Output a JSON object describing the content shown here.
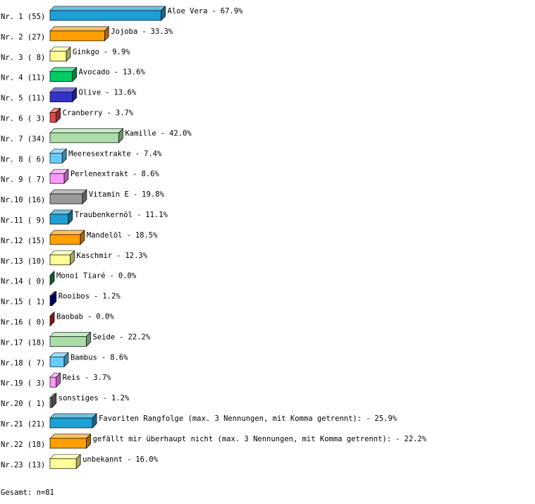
{
  "chart_data": {
    "type": "bar",
    "row_labels": [
      "Nr. 1 (55)",
      "Nr. 2 (27)",
      "Nr. 3 ( 8)",
      "Nr. 4 (11)",
      "Nr. 5 (11)",
      "Nr. 6 ( 3)",
      "Nr. 7 (34)",
      "Nr. 8 ( 6)",
      "Nr. 9 ( 7)",
      "Nr.10 (16)",
      "Nr.11 ( 9)",
      "Nr.12 (15)",
      "Nr.13 (10)",
      "Nr.14 ( 0)",
      "Nr.15 ( 1)",
      "Nr.16 ( 0)",
      "Nr.17 (18)",
      "Nr.18 ( 7)",
      "Nr.19 ( 3)",
      "Nr.20 ( 1)",
      "Nr.21 (21)",
      "Nr.22 (18)",
      "Nr.23 (13)"
    ],
    "categories": [
      "Aloe Vera",
      "Jojoba",
      "Ginkgo",
      "Avocado",
      "Olive",
      "Cranberry",
      "Kamille",
      "Meeresextrakte",
      "Perlenextrakt",
      "Vitamin E",
      "Traubenkernöl",
      "Mandelöl",
      "Kaschmir",
      "Monoi Tiaré",
      "Rooibos",
      "Baobab",
      "Seide",
      "Bambus",
      "Reis",
      "sonstiges",
      "Favoriten Rangfolge (max. 3 Nennungen, mit Komma getrennt):",
      "gefällt mir überhaupt nicht (max. 3 Nennungen, mit Komma getrennt):",
      "unbekannt"
    ],
    "separator": "-",
    "values": [
      67.9,
      33.3,
      9.9,
      13.6,
      13.6,
      3.7,
      42.0,
      7.4,
      8.6,
      19.8,
      11.1,
      18.5,
      12.3,
      0.0,
      1.2,
      0.0,
      22.2,
      8.6,
      3.7,
      1.2,
      25.9,
      22.2,
      16.0
    ],
    "value_labels": [
      "67.9%",
      "33.3%",
      "9.9%",
      "13.6%",
      "13.6%",
      "3.7%",
      "42.0%",
      "7.4%",
      "8.6%",
      "19.8%",
      "11.1%",
      "18.5%",
      "12.3%",
      "0.0%",
      "1.2%",
      "0.0%",
      "22.2%",
      "8.6%",
      "3.7%",
      "1.2%",
      "25.9%",
      "22.2%",
      "16.0%"
    ],
    "colors": [
      "#1e9fd6",
      "#ffa000",
      "#ffff99",
      "#00cc66",
      "#3333cc",
      "#e04848",
      "#aadda8",
      "#66ccff",
      "#ff99ff",
      "#999999",
      "#1e9fd6",
      "#ffa000",
      "#ffff99",
      "#1f8a45",
      "#000099",
      "#cc2222",
      "#aadda8",
      "#66ccff",
      "#ff99ff",
      "#777777",
      "#1e9fd6",
      "#ffa000",
      "#ffff99"
    ],
    "footer": "Gesamt: n=81"
  }
}
